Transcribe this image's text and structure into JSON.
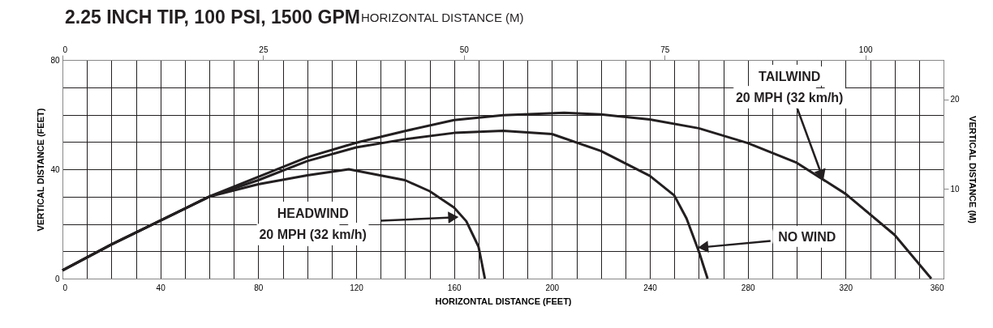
{
  "chart_data": {
    "type": "line",
    "title": "2.25 INCH TIP, 100 PSI, 1500 GPM",
    "xlabel": "HORIZONTAL DISTANCE (FEET)",
    "ylabel": "VERTICAL DISTANCE (FEET)",
    "x2label": "HORIZONTAL DISTANCE (M)",
    "y2label": "VERTICAL DISTANCE (M)",
    "xlim": [
      0,
      360
    ],
    "ylim": [
      0,
      80
    ],
    "xticks": [
      0,
      {
        "value": 10,
        "label": null
      },
      {
        "value": 20,
        "label": null
      },
      {
        "value": 30,
        "label": null
      },
      40,
      {
        "value": 50,
        "label": null
      },
      {
        "value": 60,
        "label": null
      },
      {
        "value": 70,
        "label": null
      },
      80,
      {
        "value": 90,
        "label": null
      },
      {
        "value": 100,
        "label": null
      },
      {
        "value": 110,
        "label": null
      },
      120,
      {
        "value": 130,
        "label": null
      },
      {
        "value": 140,
        "label": null
      },
      {
        "value": 150,
        "label": null
      },
      160,
      {
        "value": 170,
        "label": null
      },
      {
        "value": 180,
        "label": null
      },
      {
        "value": 190,
        "label": null
      },
      200,
      {
        "value": 210,
        "label": null
      },
      {
        "value": 220,
        "label": null
      },
      {
        "value": 230,
        "label": null
      },
      240,
      {
        "value": 250,
        "label": null
      },
      {
        "value": 260,
        "label": null
      },
      {
        "value": 270,
        "label": null
      },
      280,
      {
        "value": 290,
        "label": null
      },
      {
        "value": 300,
        "label": null
      },
      {
        "value": 310,
        "label": null
      },
      320,
      {
        "value": 330,
        "label": null
      },
      {
        "value": 340,
        "label": null
      },
      {
        "value": 350,
        "label": null
      },
      360
    ],
    "yticks": [
      0,
      {
        "value": 10,
        "label": null
      },
      {
        "value": 20,
        "label": null
      },
      {
        "value": 30,
        "label": null
      },
      40,
      {
        "value": 50,
        "label": null
      },
      {
        "value": 60,
        "label": null
      },
      {
        "value": 70,
        "label": null
      },
      80
    ],
    "x2lim": [
      0,
      109.73
    ],
    "x2ticks": [
      0,
      25,
      50,
      75,
      100
    ],
    "y2lim": [
      0,
      24.38
    ],
    "y2ticks": [
      10,
      20
    ],
    "grid": true,
    "line_style": "solid",
    "marker": "none",
    "series": [
      {
        "color": "#231f20",
        "x": [
          0,
          20,
          40,
          60,
          80,
          100,
          117,
          140,
          150,
          160,
          165,
          170,
          172.6
        ],
        "values": [
          3,
          12.5,
          21.2,
          30,
          34.5,
          37.8,
          40,
          36,
          32,
          26,
          21,
          11.7,
          0
        ]
      },
      {
        "color": "#231f20",
        "x": [
          0,
          20,
          40,
          60,
          80,
          100,
          120,
          140,
          160,
          180,
          200,
          220,
          240,
          250,
          255,
          260,
          263.6
        ],
        "values": [
          3,
          12.5,
          21.2,
          30,
          36,
          43,
          48,
          51,
          53.3,
          54.1,
          52.9,
          46.7,
          37.6,
          30.4,
          22,
          10,
          0
        ]
      },
      {
        "color": "#231f20",
        "x": [
          0,
          20,
          40,
          60,
          80,
          100,
          120,
          140,
          160,
          180,
          205,
          220,
          240,
          260,
          280,
          300,
          320,
          340,
          355
        ],
        "values": [
          3,
          12.5,
          21.2,
          30,
          37.2,
          44.4,
          49.7,
          54,
          58,
          59.8,
          60.7,
          60.1,
          58.2,
          55,
          49.6,
          42.4,
          31,
          16,
          0
        ]
      }
    ],
    "annotations": [
      {
        "text": "HEADWIND\n20 MPH (32 km/h)",
        "x": 162,
        "y": 22.5
      },
      {
        "text": "TAILWIND\n20 MPH (32 km/h)",
        "x": 311,
        "y": 36
      },
      {
        "text": "NO WIND",
        "x": 259.5,
        "y": 11.3
      }
    ]
  }
}
